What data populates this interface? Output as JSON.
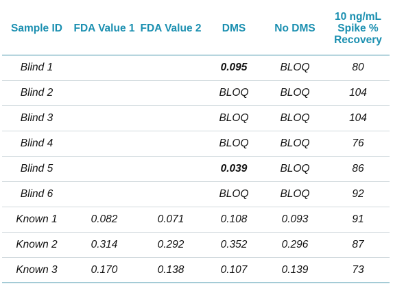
{
  "table": {
    "headers": [
      "Sample ID",
      "FDA Value 1",
      "FDA Value 2",
      "DMS",
      "No DMS",
      "10 ng/mL Spike % Recovery"
    ],
    "rows": [
      {
        "sample_id": "Blind 1",
        "fda1": "",
        "fda2": "",
        "dms": "0.095",
        "no_dms": "BLOQ",
        "recovery": "80",
        "dms_bold": true
      },
      {
        "sample_id": "Blind 2",
        "fda1": "",
        "fda2": "",
        "dms": "BLOQ",
        "no_dms": "BLOQ",
        "recovery": "104",
        "dms_bold": false
      },
      {
        "sample_id": "Blind 3",
        "fda1": "",
        "fda2": "",
        "dms": "BLOQ",
        "no_dms": "BLOQ",
        "recovery": "104",
        "dms_bold": false
      },
      {
        "sample_id": "Blind 4",
        "fda1": "",
        "fda2": "",
        "dms": "BLOQ",
        "no_dms": "BLOQ",
        "recovery": "76",
        "dms_bold": false
      },
      {
        "sample_id": "Blind 5",
        "fda1": "",
        "fda2": "",
        "dms": "0.039",
        "no_dms": "BLOQ",
        "recovery": "86",
        "dms_bold": true
      },
      {
        "sample_id": "Blind 6",
        "fda1": "",
        "fda2": "",
        "dms": "BLOQ",
        "no_dms": "BLOQ",
        "recovery": "92",
        "dms_bold": false
      },
      {
        "sample_id": "Known 1",
        "fda1": "0.082",
        "fda2": "0.071",
        "dms": "0.108",
        "no_dms": "0.093",
        "recovery": "91",
        "dms_bold": false
      },
      {
        "sample_id": "Known 2",
        "fda1": "0.314",
        "fda2": "0.292",
        "dms": "0.352",
        "no_dms": "0.296",
        "recovery": "87",
        "dms_bold": false
      },
      {
        "sample_id": "Known 3",
        "fda1": "0.170",
        "fda2": "0.138",
        "dms": "0.107",
        "no_dms": "0.139",
        "recovery": "73",
        "dms_bold": false
      }
    ]
  },
  "colors": {
    "header_text": "#1a8fb0",
    "rule": "#3a8ea6",
    "row_divider": "#cfd8dc"
  }
}
